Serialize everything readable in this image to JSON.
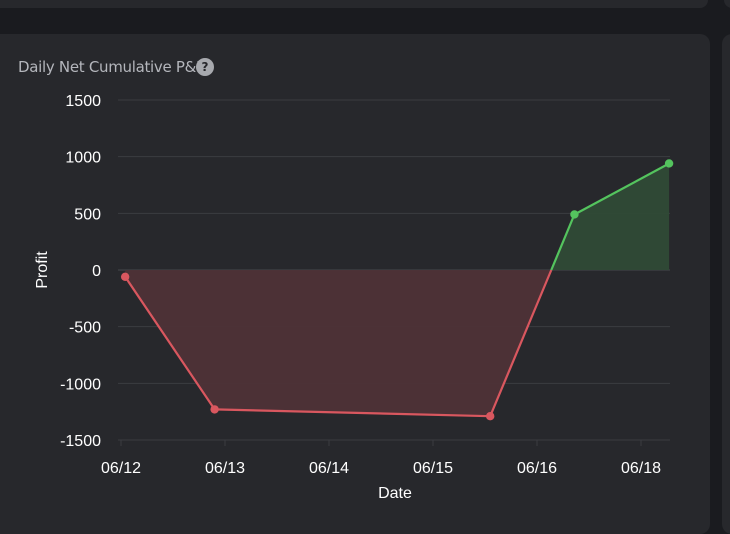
{
  "card": {
    "title": "Daily Net Cumulative P&L",
    "help_icon": "question-mark-icon"
  },
  "chart_data": {
    "type": "area",
    "title": "Daily Net Cumulative P&L",
    "xlabel": "Date",
    "ylabel": "Profit",
    "x_ticks": [
      "06/12",
      "06/13",
      "06/14",
      "06/15",
      "06/16",
      "06/18"
    ],
    "y_ticks": [
      1500,
      1000,
      500,
      0,
      -500,
      -1000,
      -1500
    ],
    "ylim": [
      -1500,
      1500
    ],
    "grid": true,
    "series": [
      {
        "x": [
          0.04,
          0.9,
          3.55,
          4.36,
          5.27
        ],
        "y": [
          -60,
          -1230,
          -1290,
          490,
          940
        ]
      }
    ],
    "colors": {
      "positive": "#54c45e",
      "negative": "#d9575f",
      "positive_fill": "#2f4a36",
      "negative_fill": "#4e3137",
      "grid": "#3b3c41",
      "text": "#ffffff"
    }
  }
}
